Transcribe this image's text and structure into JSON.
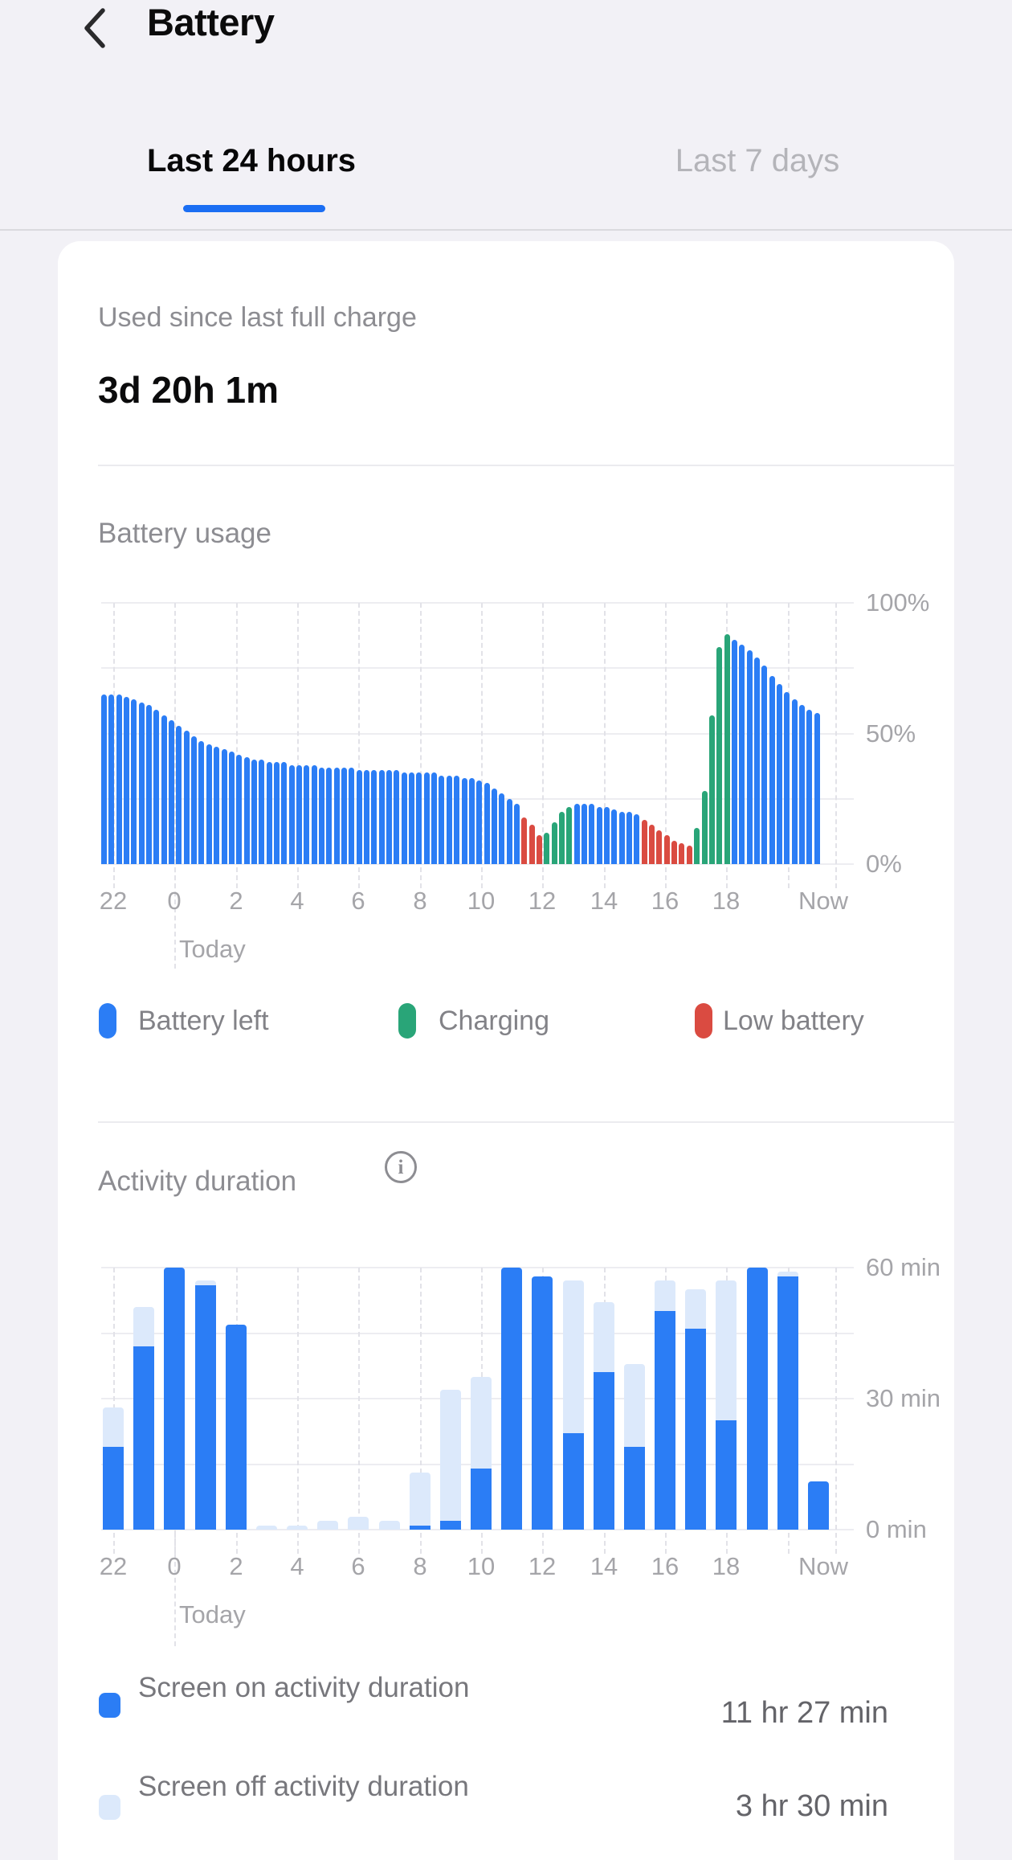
{
  "header": {
    "title": "Battery"
  },
  "tabs": {
    "items": [
      {
        "label": "Last 24 hours",
        "active": true
      },
      {
        "label": "Last 7 days",
        "active": false
      }
    ],
    "accent_color": "#1b6ef3"
  },
  "summary": {
    "label": "Used since last full charge",
    "value": "3d 20h 1m"
  },
  "battery_section": {
    "title": "Battery usage",
    "legend": [
      {
        "label": "Battery left",
        "color": "#2b7df5"
      },
      {
        "label": "Charging",
        "color": "#29a578"
      },
      {
        "label": "Low battery",
        "color": "#da4b41"
      }
    ]
  },
  "activity_section": {
    "title": "Activity duration",
    "legend": [
      {
        "label": "Screen on activity duration",
        "value": "11 hr 27 min",
        "color": "#2b7df5"
      },
      {
        "label": "Screen off activity duration",
        "value": "3 hr 30 min",
        "color": "#dce9fb"
      }
    ]
  },
  "chart_data": [
    {
      "type": "bar",
      "title": "Battery usage",
      "unit": "percent",
      "bar_interval_minutes": 15,
      "ylim": [
        0,
        100
      ],
      "yticks": [
        {
          "value": 100,
          "label": "100%"
        },
        {
          "value": 50,
          "label": "50%"
        },
        {
          "value": 0,
          "label": "0%"
        }
      ],
      "gridlines": [
        0,
        25,
        50,
        75,
        100
      ],
      "xticks": [
        "22",
        "0",
        "2",
        "4",
        "6",
        "8",
        "10",
        "12",
        "14",
        "16",
        "18"
      ],
      "now_label": "Now",
      "today_label": "Today",
      "states": {
        "L": {
          "name": "Battery left",
          "color": "#2b7df5"
        },
        "C": {
          "name": "Charging",
          "color": "#29a578"
        },
        "R": {
          "name": "Low battery",
          "color": "#da4b41"
        }
      },
      "bars": [
        [
          65,
          "L"
        ],
        [
          65,
          "L"
        ],
        [
          65,
          "L"
        ],
        [
          64,
          "L"
        ],
        [
          63,
          "L"
        ],
        [
          62,
          "L"
        ],
        [
          61,
          "L"
        ],
        [
          59,
          "L"
        ],
        [
          57,
          "L"
        ],
        [
          55,
          "L"
        ],
        [
          53,
          "L"
        ],
        [
          51,
          "L"
        ],
        [
          49,
          "L"
        ],
        [
          47,
          "L"
        ],
        [
          46,
          "L"
        ],
        [
          45,
          "L"
        ],
        [
          44,
          "L"
        ],
        [
          43,
          "L"
        ],
        [
          42,
          "L"
        ],
        [
          41,
          "L"
        ],
        [
          40,
          "L"
        ],
        [
          40,
          "L"
        ],
        [
          39,
          "L"
        ],
        [
          39,
          "L"
        ],
        [
          39,
          "L"
        ],
        [
          38,
          "L"
        ],
        [
          38,
          "L"
        ],
        [
          38,
          "L"
        ],
        [
          38,
          "L"
        ],
        [
          37,
          "L"
        ],
        [
          37,
          "L"
        ],
        [
          37,
          "L"
        ],
        [
          37,
          "L"
        ],
        [
          37,
          "L"
        ],
        [
          36,
          "L"
        ],
        [
          36,
          "L"
        ],
        [
          36,
          "L"
        ],
        [
          36,
          "L"
        ],
        [
          36,
          "L"
        ],
        [
          36,
          "L"
        ],
        [
          35,
          "L"
        ],
        [
          35,
          "L"
        ],
        [
          35,
          "L"
        ],
        [
          35,
          "L"
        ],
        [
          35,
          "L"
        ],
        [
          34,
          "L"
        ],
        [
          34,
          "L"
        ],
        [
          34,
          "L"
        ],
        [
          33,
          "L"
        ],
        [
          33,
          "L"
        ],
        [
          32,
          "L"
        ],
        [
          31,
          "L"
        ],
        [
          29,
          "L"
        ],
        [
          27,
          "L"
        ],
        [
          25,
          "L"
        ],
        [
          23,
          "L"
        ],
        [
          18,
          "R"
        ],
        [
          15,
          "R"
        ],
        [
          11,
          "R"
        ],
        [
          12,
          "C"
        ],
        [
          16,
          "C"
        ],
        [
          20,
          "C"
        ],
        [
          22,
          "C"
        ],
        [
          23,
          "L"
        ],
        [
          23,
          "L"
        ],
        [
          23,
          "L"
        ],
        [
          22,
          "L"
        ],
        [
          22,
          "L"
        ],
        [
          21,
          "L"
        ],
        [
          20,
          "L"
        ],
        [
          20,
          "L"
        ],
        [
          19,
          "L"
        ],
        [
          17,
          "R"
        ],
        [
          15,
          "R"
        ],
        [
          13,
          "R"
        ],
        [
          11,
          "R"
        ],
        [
          9,
          "R"
        ],
        [
          8,
          "R"
        ],
        [
          7,
          "R"
        ],
        [
          14,
          "C"
        ],
        [
          28,
          "C"
        ],
        [
          57,
          "C"
        ],
        [
          83,
          "C"
        ],
        [
          88,
          "C"
        ],
        [
          86,
          "L"
        ],
        [
          84,
          "L"
        ],
        [
          82,
          "L"
        ],
        [
          79,
          "L"
        ],
        [
          76,
          "L"
        ],
        [
          72,
          "L"
        ],
        [
          69,
          "L"
        ],
        [
          66,
          "L"
        ],
        [
          63,
          "L"
        ],
        [
          61,
          "L"
        ],
        [
          59,
          "L"
        ],
        [
          58,
          "L"
        ]
      ]
    },
    {
      "type": "stacked-bar",
      "title": "Activity duration",
      "unit": "minutes",
      "ylim": [
        0,
        60
      ],
      "yticks": [
        {
          "value": 60,
          "label": "60 min"
        },
        {
          "value": 30,
          "label": "30 min"
        },
        {
          "value": 0,
          "label": "0 min"
        }
      ],
      "gridlines": [
        0,
        15,
        30,
        45,
        60
      ],
      "xticks": [
        "22",
        "0",
        "2",
        "4",
        "6",
        "8",
        "10",
        "12",
        "14",
        "16",
        "18"
      ],
      "now_label": "Now",
      "today_label": "Today",
      "hours": [
        "22",
        "23",
        "0",
        "1",
        "2",
        "3",
        "4",
        "5",
        "6",
        "7",
        "8",
        "9",
        "10",
        "11",
        "12",
        "13",
        "14",
        "15",
        "16",
        "17",
        "18",
        "19",
        "20",
        "21"
      ],
      "series": [
        {
          "name": "Screen on activity duration",
          "color": "#2b7df5",
          "total": "11 hr 27 min",
          "values": [
            19,
            42,
            60,
            56,
            47,
            0,
            0,
            0,
            0,
            0,
            1,
            2,
            14,
            60,
            58,
            22,
            36,
            19,
            50,
            46,
            25,
            60,
            58,
            11
          ]
        },
        {
          "name": "Screen off activity duration",
          "color": "#dce9fb",
          "total": "3 hr 30 min",
          "values": [
            9,
            9,
            0,
            1,
            0,
            1,
            1,
            2,
            3,
            2,
            12,
            30,
            21,
            0,
            0,
            35,
            16,
            19,
            7,
            9,
            32,
            0,
            1,
            0
          ]
        }
      ]
    }
  ]
}
